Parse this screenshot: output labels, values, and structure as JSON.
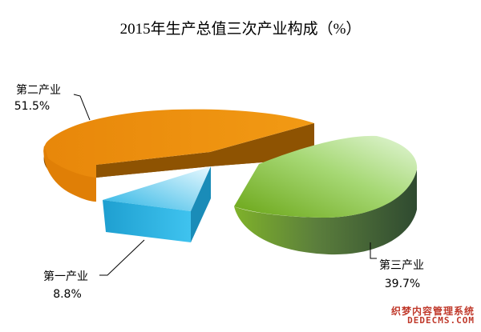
{
  "chart_data": {
    "type": "pie",
    "title": "2015年生产总值三次产业构成（%）",
    "style": "3d-exploded",
    "slices": [
      {
        "label": "第一产业",
        "value": 8.8,
        "value_text": "8.8%",
        "color": "#2ab4e4",
        "side_color": "#1a8cb8",
        "top_light": "#d6f4ff"
      },
      {
        "label": "第二产业",
        "value": 51.5,
        "value_text": "51.5%",
        "color": "#e8870a",
        "side_color": "#8a5000",
        "top_light": "#f5a020"
      },
      {
        "label": "第三产业",
        "value": 39.7,
        "value_text": "39.7%",
        "color": "#7ab41e",
        "side_color": "#3f5b3a",
        "top_light": "#d9f2c9"
      }
    ]
  },
  "watermark": {
    "line1": "织梦内容管理系统",
    "line2": "DEDECMS.COM"
  }
}
